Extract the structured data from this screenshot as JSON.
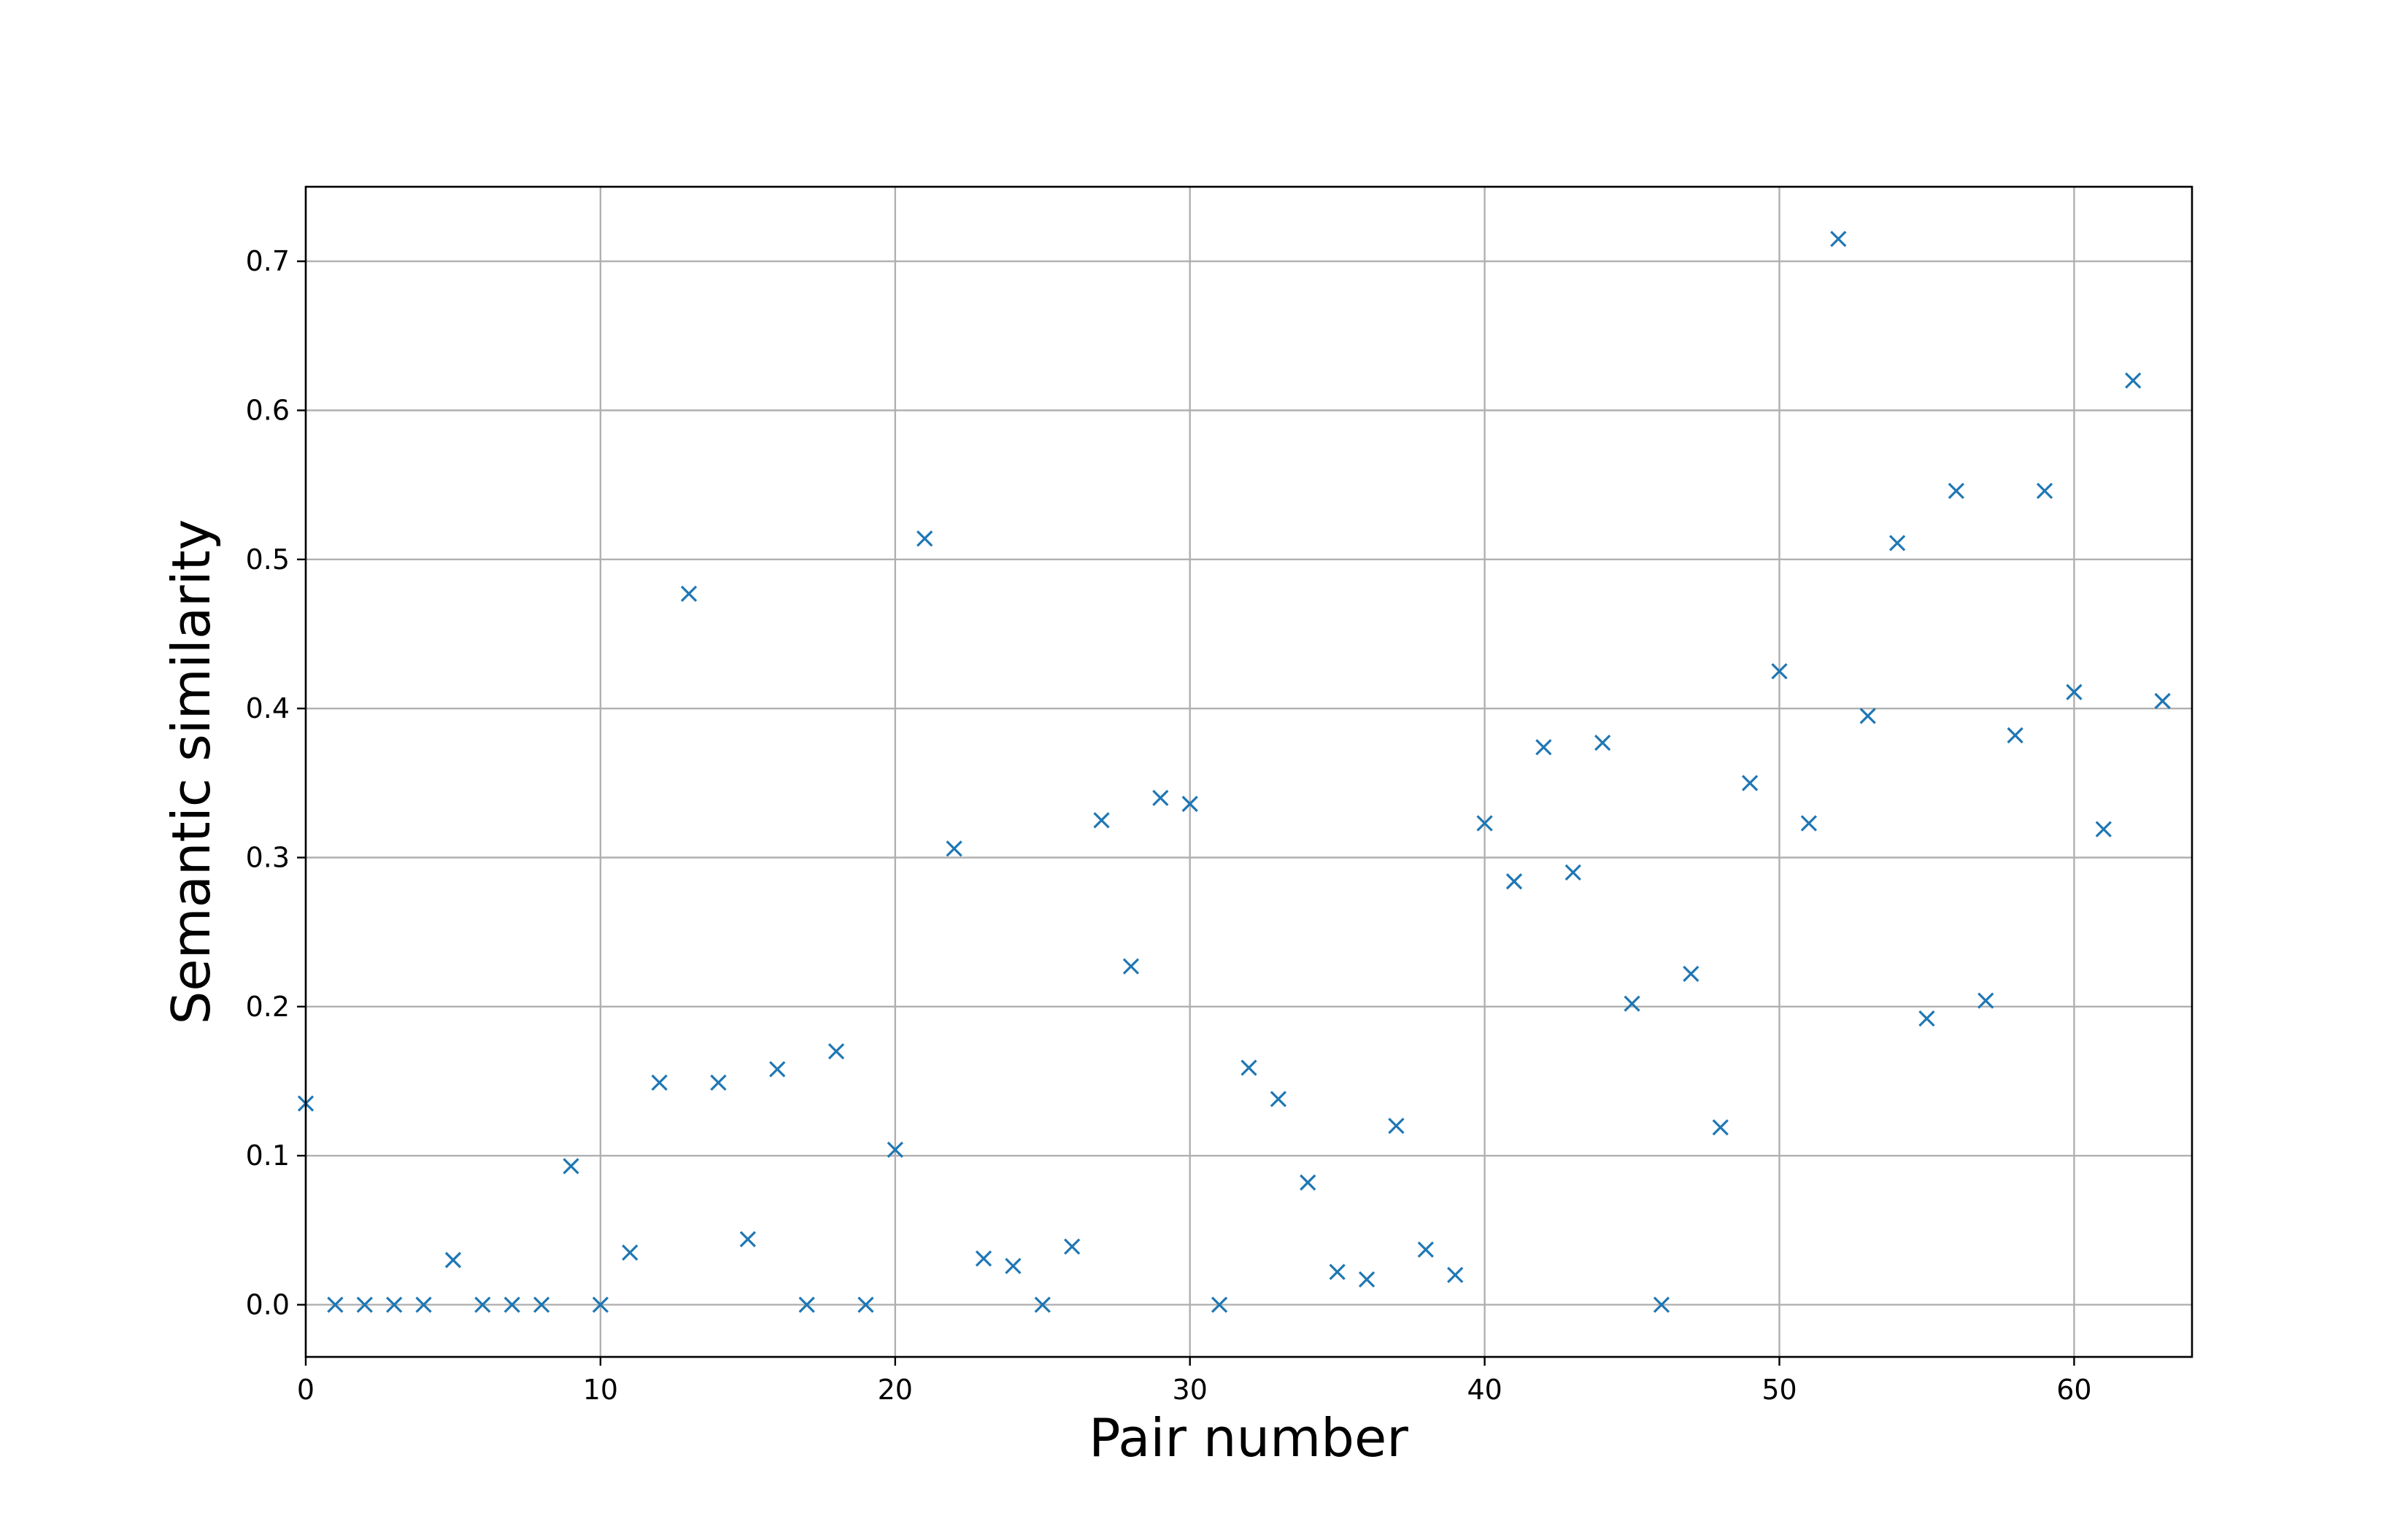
{
  "chart_data": {
    "type": "scatter",
    "title": "",
    "xlabel": "Pair number",
    "ylabel": "Semantic similarity",
    "xlim": [
      0,
      64
    ],
    "ylim": [
      -0.035,
      0.75
    ],
    "xticks": [
      0,
      10,
      20,
      30,
      40,
      50,
      60
    ],
    "yticks": [
      0.0,
      0.1,
      0.2,
      0.3,
      0.4,
      0.5,
      0.6,
      0.7
    ],
    "xtick_labels": [
      "0",
      "10",
      "20",
      "30",
      "40",
      "50",
      "60"
    ],
    "ytick_labels": [
      "0.0",
      "0.1",
      "0.2",
      "0.3",
      "0.4",
      "0.5",
      "0.6",
      "0.7"
    ],
    "grid": true,
    "marker": "x",
    "color": "#1f77b4",
    "series": [
      {
        "x": [
          0,
          1,
          2,
          3,
          4,
          5,
          6,
          7,
          8,
          9,
          10,
          11,
          12,
          13,
          14,
          15,
          16,
          17,
          18,
          19,
          20,
          21,
          22,
          23,
          24,
          25,
          26,
          27,
          28,
          29,
          30,
          31,
          32,
          33,
          34,
          35,
          36,
          37,
          38,
          39,
          40,
          41,
          42,
          43,
          44,
          45,
          46,
          47,
          48,
          49,
          50,
          51,
          52,
          53,
          54,
          55,
          56,
          57,
          58,
          59,
          60,
          61,
          62,
          63
        ],
        "y": [
          0.135,
          0.0,
          0.0,
          0.0,
          0.0,
          0.03,
          0.0,
          0.0,
          0.0,
          0.093,
          0.0,
          0.035,
          0.149,
          0.477,
          0.149,
          0.044,
          0.158,
          0.0,
          0.17,
          0.0,
          0.104,
          0.514,
          0.306,
          0.031,
          0.026,
          0.0,
          0.039,
          0.325,
          0.227,
          0.34,
          0.336,
          0.0,
          0.159,
          0.138,
          0.082,
          0.022,
          0.017,
          0.12,
          0.037,
          0.02,
          0.323,
          0.284,
          0.374,
          0.29,
          0.377,
          0.202,
          0.0,
          0.222,
          0.119,
          0.35,
          0.425,
          0.323,
          0.715,
          0.395,
          0.511,
          0.192,
          0.546,
          0.204,
          0.382,
          0.546,
          0.411,
          0.319,
          0.62,
          0.405
        ]
      }
    ]
  }
}
